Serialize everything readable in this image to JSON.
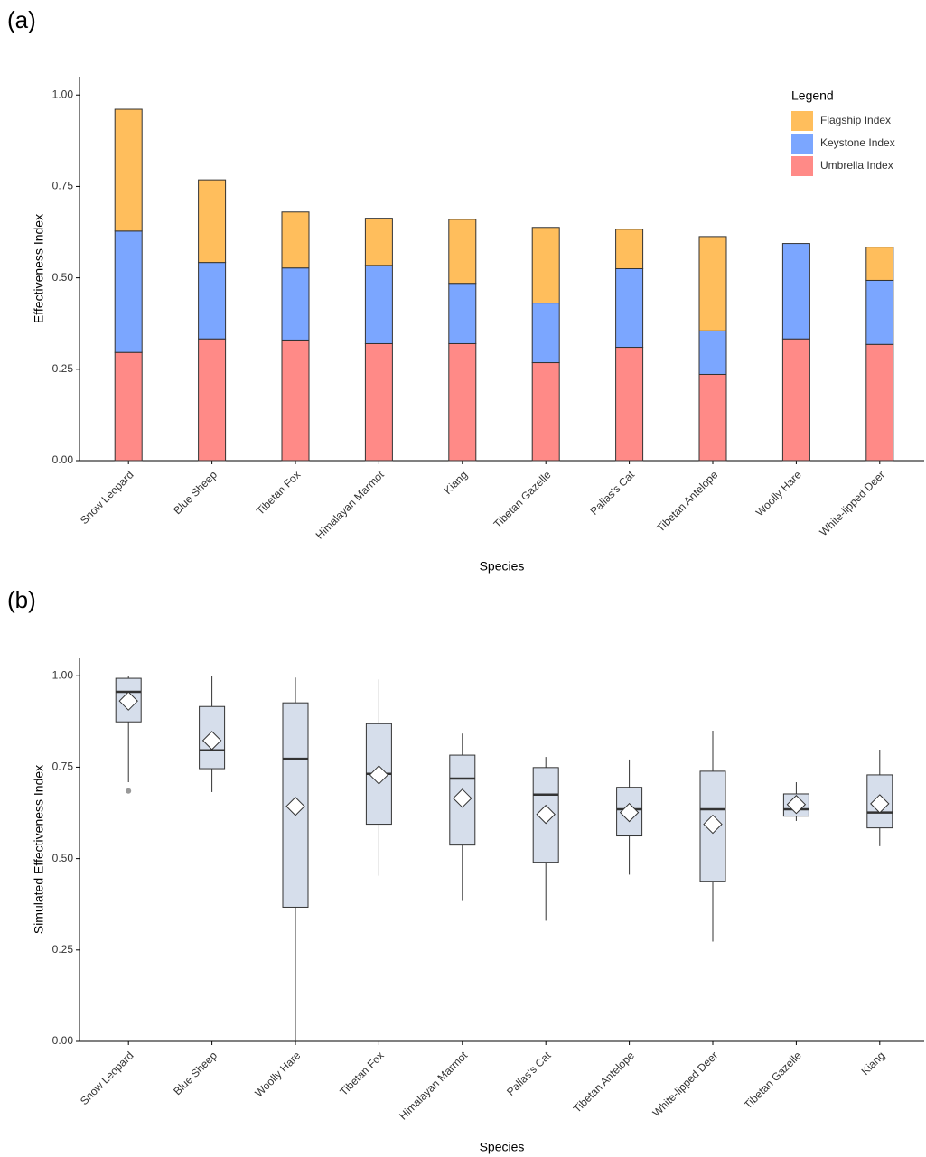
{
  "chart_data": [
    {
      "type": "stacked_bar",
      "panel_label": "(a)",
      "x_label": "Species",
      "y_label": "Effectiveness Index",
      "categories": [
        "Snow Leopard",
        "Blue Sheep",
        "Tibetan Fox",
        "Himalayan Marmot",
        "Kiang",
        "Tibetan Gazelle",
        "Pallas's Cat",
        "Tibetan Antelope",
        "Woolly Hare",
        "White-lipped Deer"
      ],
      "series": [
        {
          "name": "Umbrella Index",
          "color": "#ff8a87",
          "values": [
            0.296,
            0.333,
            0.33,
            0.32,
            0.32,
            0.268,
            0.31,
            0.236,
            0.333,
            0.318
          ]
        },
        {
          "name": "Keystone Index",
          "color": "#7ba6ff",
          "values": [
            0.332,
            0.209,
            0.197,
            0.214,
            0.165,
            0.163,
            0.215,
            0.119,
            0.261,
            0.175
          ]
        },
        {
          "name": "Flagship Index",
          "color": "#ffbe5c",
          "values": [
            0.333,
            0.226,
            0.153,
            0.129,
            0.175,
            0.207,
            0.108,
            0.258,
            0,
            0.091
          ]
        }
      ],
      "legend_title": "Legend",
      "legend_position": "top-right",
      "ylim": [
        0,
        1.05
      ],
      "yticks": [
        {
          "value": 0,
          "label": "0.00"
        },
        0.25,
        {
          "value": 0.5,
          "label": "0.50"
        },
        0.75,
        {
          "value": 1,
          "label": "1.00"
        }
      ]
    },
    {
      "type": "box",
      "panel_label": "(b)",
      "x_label": "Species",
      "y_label": "Simulated Effectiveness Index",
      "categories": [
        "Snow Leopard",
        "Blue Sheep",
        "Woolly Hare",
        "Tibetan Fox",
        "Himalayan Marmot",
        "Pallas's Cat",
        "Tibetan Antelope",
        "White-lipped Deer",
        "Tibetan Gazelle",
        "Kiang"
      ],
      "whisker_low": [
        0.709,
        0.682,
        0,
        0.453,
        0.384,
        0.33,
        0.456,
        0.273,
        0.603,
        0.534
      ],
      "q1": [
        0.874,
        0.746,
        0.367,
        0.594,
        0.537,
        0.49,
        0.562,
        0.438,
        0.616,
        0.584
      ],
      "median": [
        0.956,
        0.796,
        0.773,
        0.732,
        0.719,
        0.675,
        0.635,
        0.635,
        0.635,
        0.626
      ],
      "q3": [
        0.993,
        0.916,
        0.926,
        0.869,
        0.783,
        0.749,
        0.695,
        0.739,
        0.677,
        0.729
      ],
      "whisker_high": [
        1,
        1,
        0.995,
        0.99,
        0.842,
        0.778,
        0.771,
        0.85,
        0.709,
        0.798
      ],
      "mean": [
        0.931,
        0.823,
        0.643,
        0.729,
        0.665,
        0.621,
        0.626,
        0.594,
        0.648,
        0.65
      ],
      "outliers": [
        [
          0.685
        ],
        [],
        [],
        [],
        [],
        [],
        [],
        [],
        [],
        []
      ],
      "box_color": "#d6deeb",
      "mean_color": "#ffffff",
      "outlier_color": "#999999",
      "ylim": [
        0,
        1.05
      ],
      "yticks": [
        {
          "value": 0,
          "label": "0.00"
        },
        0.25,
        {
          "value": 0.5,
          "label": "0.50"
        },
        0.75,
        {
          "value": 1,
          "label": "1.00"
        }
      ]
    }
  ]
}
